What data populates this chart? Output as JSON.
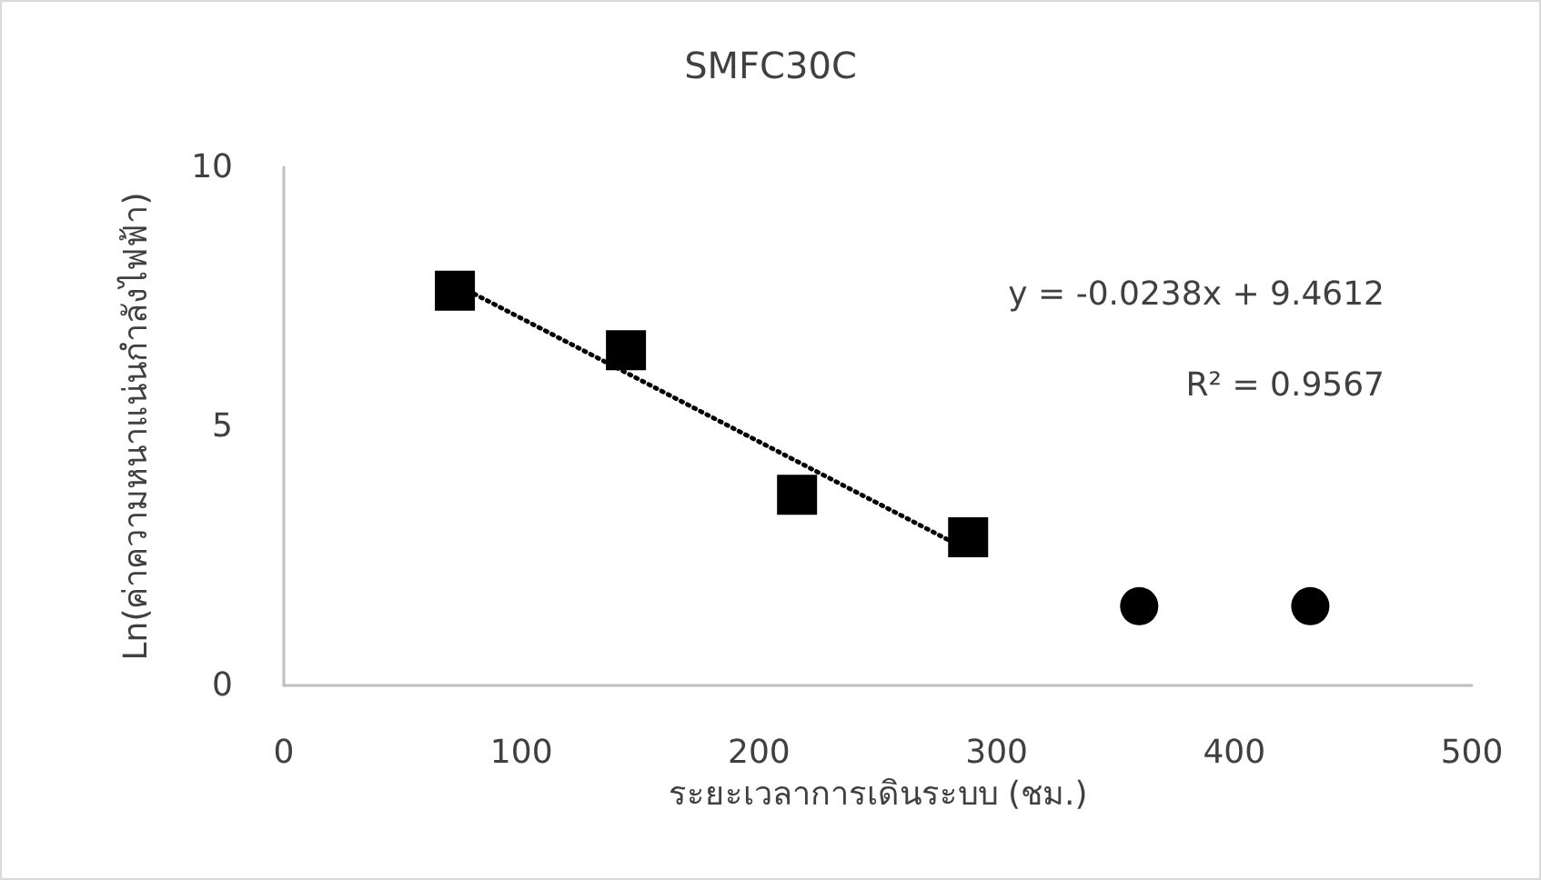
{
  "chart_data": {
    "type": "scatter",
    "title": "SMFC30C",
    "xlabel": "ระยะเวลาการเดินระบบ (ชม.)",
    "ylabel": "Ln(ค่าความหนาแน่นกำลังไฟฟ้า)",
    "series": [
      {
        "marker": "square",
        "color": "#000000",
        "x": [
          72,
          144,
          216,
          288
        ],
        "values": [
          7.62,
          6.47,
          3.68,
          2.86
        ]
      },
      {
        "marker": "circle",
        "color": "#000000",
        "x": [
          360,
          432
        ],
        "values": [
          1.53,
          1.53
        ]
      },
      {
        "type": "line",
        "line_style": "dotted",
        "marker": "none",
        "color": "#000000",
        "x": [
          72,
          288
        ],
        "values": [
          7.75,
          2.61
        ]
      }
    ],
    "annotations": [
      "y = -0.0238x + 9.4612",
      "R² = 0.9567"
    ],
    "xlim": [
      0,
      500
    ],
    "xticks": [
      0,
      100,
      200,
      300,
      400,
      500
    ],
    "ylim": [
      0,
      10
    ],
    "yticks": [
      0,
      5,
      10
    ],
    "grid": false
  }
}
